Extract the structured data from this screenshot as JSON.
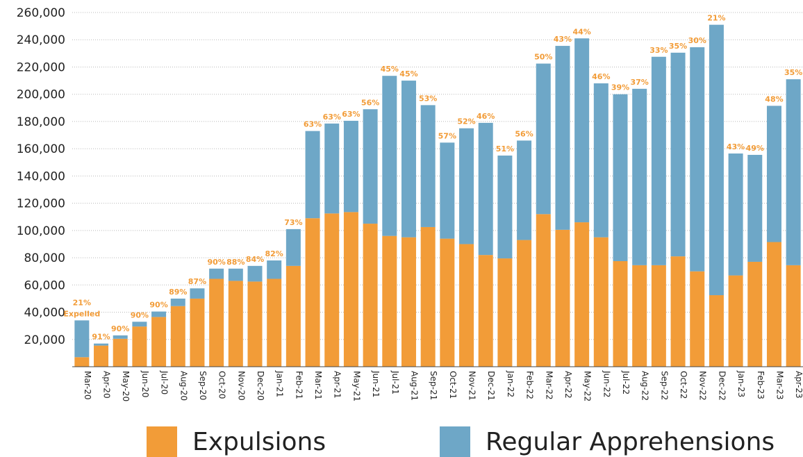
{
  "chart_data": {
    "type": "bar",
    "stacked": true,
    "categories": [
      "Mar-20",
      "Apr-20",
      "May-20",
      "Jun-20",
      "Jul-20",
      "Aug-20",
      "Sep-20",
      "Oct-20",
      "Nov-20",
      "Dec-20",
      "Jan-21",
      "Feb-21",
      "Mar-21",
      "Apr-21",
      "May-21",
      "Jun-21",
      "Jul-21",
      "Aug-21",
      "Sep-21",
      "Oct-21",
      "Nov-21",
      "Dec-21",
      "Jan-22",
      "Feb-22",
      "Mar-22",
      "Apr-22",
      "May-22",
      "Jun-22",
      "Jul-22",
      "Aug-22",
      "Sep-22",
      "Oct-22",
      "Nov-22",
      "Dec-22",
      "Jan-23",
      "Feb-23",
      "Mar-23",
      "Apr-23"
    ],
    "series": [
      {
        "name": "Expulsions",
        "color": "#f29c38",
        "values": [
          7000,
          15500,
          20500,
          29500,
          36500,
          44500,
          50000,
          64500,
          63000,
          62500,
          64500,
          74000,
          109000,
          112500,
          113500,
          105000,
          96000,
          95000,
          102500,
          94000,
          90000,
          82000,
          79500,
          93000,
          112000,
          100500,
          106000,
          95000,
          77500,
          74500,
          74500,
          81000,
          70000,
          52500,
          67000,
          77000,
          91500,
          74500
        ]
      },
      {
        "name": "Regular Apprehensions",
        "color": "#6ea7c7",
        "values": [
          27000,
          1500,
          2500,
          3500,
          4000,
          5500,
          7500,
          7500,
          9000,
          11500,
          13500,
          27000,
          64000,
          66000,
          67000,
          84000,
          117500,
          115000,
          89500,
          70500,
          85000,
          97000,
          75500,
          73000,
          110500,
          135000,
          135000,
          113000,
          122500,
          129500,
          153000,
          149500,
          164500,
          198500,
          89500,
          78500,
          100000,
          136500
        ]
      }
    ],
    "percent_labels": [
      "21%",
      "91%",
      "90%",
      "90%",
      "90%",
      "89%",
      "87%",
      "90%",
      "88%",
      "84%",
      "82%",
      "73%",
      "63%",
      "63%",
      "63%",
      "56%",
      "45%",
      "45%",
      "53%",
      "57%",
      "52%",
      "46%",
      "51%",
      "56%",
      "50%",
      "43%",
      "44%",
      "46%",
      "39%",
      "37%",
      "33%",
      "35%",
      "30%",
      "21%",
      "43%",
      "49%",
      "48%",
      "35%"
    ],
    "first_label_note": "Expelled",
    "label_color": "#f29c38",
    "yticks": [
      "20,000",
      "40,000",
      "60,000",
      "80,000",
      "100,000",
      "120,000",
      "140,000",
      "160,000",
      "180,000",
      "200,000",
      "220,000",
      "240,000",
      "260,000"
    ],
    "ytick_values": [
      20000,
      40000,
      60000,
      80000,
      100000,
      120000,
      140000,
      160000,
      180000,
      200000,
      220000,
      240000,
      260000
    ],
    "ylim": [
      0,
      260000
    ],
    "grid": "horizontal dotted",
    "legend_position": "bottom",
    "title": "",
    "xlabel": "",
    "ylabel": ""
  },
  "legend": {
    "expulsions_label": "Expulsions",
    "apprehensions_label": "Regular Apprehensions"
  }
}
